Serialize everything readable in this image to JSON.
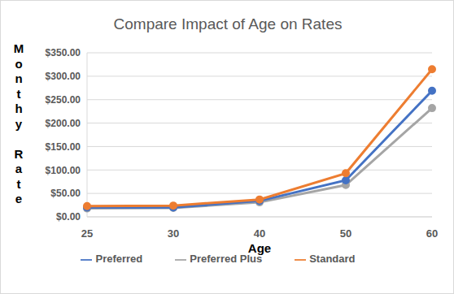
{
  "chart_data": {
    "type": "line",
    "title": "Compare Impact of Age on Rates",
    "x_label": "Age",
    "y_label": "Monthy Rate",
    "categories": [
      "25",
      "30",
      "40",
      "50",
      "60"
    ],
    "series": [
      {
        "name": "Preferred Plus",
        "color": "#a5a5a5",
        "marker": "circle",
        "values": [
          18,
          19,
          31,
          68,
          232
        ]
      },
      {
        "name": "Preferred",
        "color": "#4472c4",
        "marker": "circle",
        "values": [
          20,
          20,
          34,
          78,
          269
        ]
      },
      {
        "name": "Standard",
        "color": "#ed7d31",
        "marker": "circle",
        "values": [
          23,
          24,
          37,
          93,
          315
        ]
      }
    ],
    "ylim": [
      0,
      350
    ],
    "yticks": [
      {
        "value": 0,
        "label": "$0.00"
      },
      {
        "value": 50,
        "label": "$50.00"
      },
      {
        "value": 100,
        "label": "$100.00"
      },
      {
        "value": 150,
        "label": "$150.00"
      },
      {
        "value": 200,
        "label": "$200.00"
      },
      {
        "value": 250,
        "label": "$250.00"
      },
      {
        "value": 300,
        "label": "$300.00"
      },
      {
        "value": 350,
        "label": "$350.00"
      }
    ],
    "grid": true,
    "legend": "bottom"
  }
}
